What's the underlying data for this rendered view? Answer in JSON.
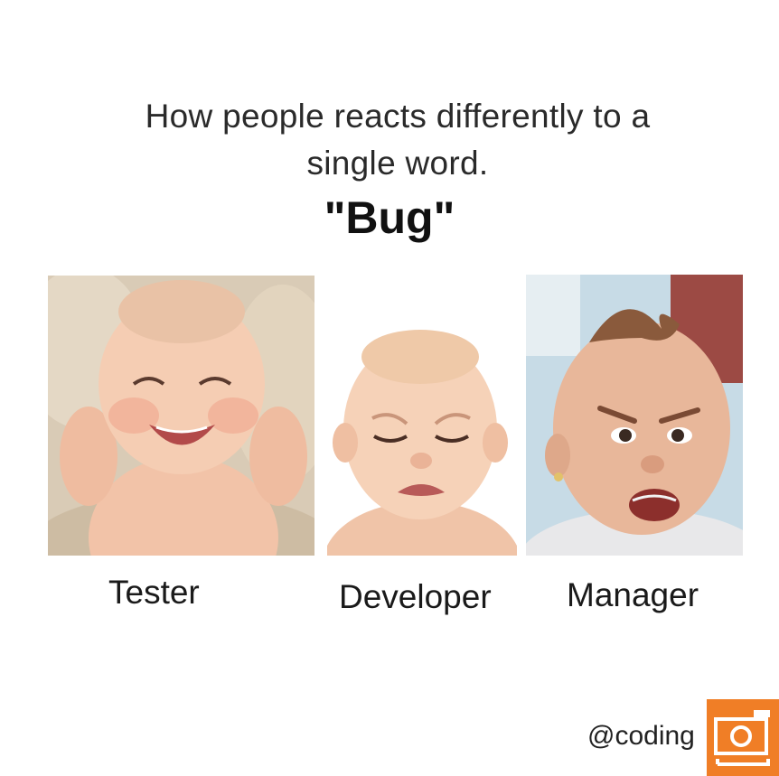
{
  "headline": {
    "line1": "How people reacts differently to a",
    "line2": "single word."
  },
  "keyword": "\"Bug\"",
  "panels": [
    {
      "caption": "Tester",
      "expression": "laughing-baby"
    },
    {
      "caption": "Developer",
      "expression": "crying-baby"
    },
    {
      "caption": "Manager",
      "expression": "angry-baby"
    }
  ],
  "footer": {
    "handle": "@coding",
    "badge_icon": "camera-icon",
    "badge_color": "#f07e26"
  }
}
